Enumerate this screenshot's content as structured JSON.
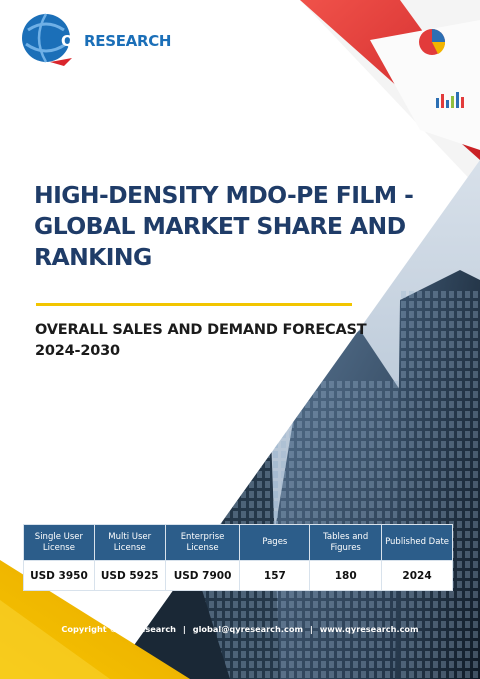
{
  "brand": {
    "logo_q": "QY",
    "logo_rest": "RESEARCH"
  },
  "title": "HIGH-DENSITY MDO-PE FILM - GLOBAL MARKET SHARE AND RANKING",
  "subtitle": "OVERALL SALES AND DEMAND FORECAST 2024-2030",
  "license_table": {
    "headers": [
      "Single User License",
      "Multi User License",
      "Enterprise License",
      "Pages",
      "Tables and Figures",
      "Published Date"
    ],
    "values": [
      "USD 3950",
      "USD 5925",
      "USD 7900",
      "157",
      "180",
      "2024"
    ]
  },
  "footer": {
    "copyright": "Copyright © QYResearch",
    "sep1": "|",
    "email": "global@qyresearch.com",
    "sep2": "|",
    "website": "www.qyresearch.com"
  },
  "colors": {
    "title": "#1f3c68",
    "accent_rule": "#f2c500",
    "table_header": "#2c5d8a",
    "logo_blue": "#1b6fb8",
    "logo_red": "#d9262c"
  }
}
